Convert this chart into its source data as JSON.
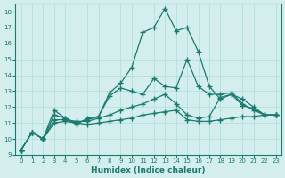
{
  "xlabel": "Humidex (Indice chaleur)",
  "bg_color": "#d4eeee",
  "grid_color": "#aadddd",
  "line_color": "#1a7a6e",
  "xlim": [
    -0.5,
    23.5
  ],
  "ylim": [
    9,
    18.5
  ],
  "x_ticks": [
    0,
    1,
    2,
    3,
    4,
    5,
    6,
    7,
    8,
    9,
    10,
    11,
    12,
    13,
    14,
    15,
    16,
    17,
    18,
    19,
    20,
    21,
    22,
    23
  ],
  "y_ticks": [
    9,
    10,
    11,
    12,
    13,
    14,
    15,
    16,
    17,
    18
  ],
  "series": [
    [
      9.3,
      10.4,
      10.0,
      11.0,
      11.1,
      11.0,
      10.9,
      11.0,
      11.1,
      11.2,
      11.3,
      11.5,
      11.6,
      11.7,
      11.8,
      11.2,
      11.1,
      11.1,
      11.2,
      11.3,
      11.4,
      11.4,
      11.5,
      11.5
    ],
    [
      9.3,
      10.4,
      10.0,
      11.2,
      11.2,
      11.1,
      11.1,
      11.3,
      11.5,
      11.8,
      12.0,
      12.2,
      12.5,
      12.8,
      12.2,
      11.5,
      11.3,
      11.4,
      12.6,
      12.8,
      12.5,
      12.0,
      11.5,
      11.5
    ],
    [
      9.3,
      10.4,
      10.0,
      11.5,
      11.3,
      11.0,
      11.2,
      11.4,
      12.7,
      13.2,
      13.0,
      12.8,
      13.8,
      13.3,
      13.2,
      15.0,
      13.3,
      12.8,
      12.8,
      12.9,
      12.2,
      11.8,
      11.5,
      11.5
    ],
    [
      9.3,
      10.4,
      10.0,
      11.8,
      11.3,
      10.9,
      11.3,
      11.4,
      12.9,
      13.5,
      14.5,
      16.7,
      17.0,
      18.2,
      16.8,
      17.0,
      15.5,
      13.3,
      12.5,
      12.8,
      12.1,
      11.9,
      11.5,
      11.5
    ]
  ]
}
